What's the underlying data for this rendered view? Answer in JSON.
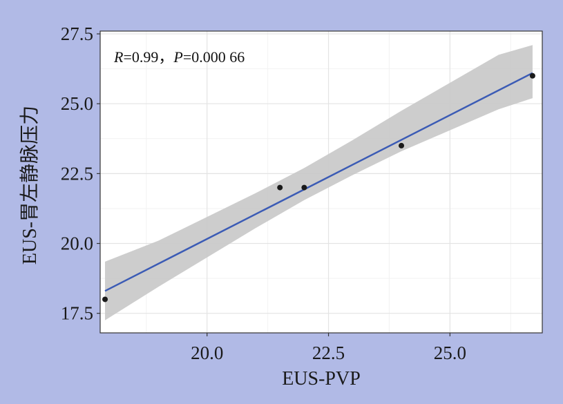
{
  "chart_data": {
    "type": "scatter",
    "xlabel": "EUS-PVP",
    "ylabel": "EUS-胃左静脉压力",
    "xlim": [
      17.8,
      26.9
    ],
    "ylim": [
      16.8,
      27.6
    ],
    "xticks": [
      20.0,
      22.5,
      25.0
    ],
    "yticks": [
      17.5,
      20.0,
      22.5,
      25.0,
      27.5
    ],
    "xtick_labels": [
      "20.0",
      "22.5",
      "25.0"
    ],
    "ytick_labels": [
      "17.5",
      "20.0",
      "22.5",
      "25.0",
      "27.5"
    ],
    "grid": true,
    "annotation": {
      "r_label": "R",
      "r_value": "=0.99",
      "separator": "，",
      "p_label": "P",
      "p_value": "=0.000 66"
    },
    "points": [
      {
        "x": 17.9,
        "y": 18.0
      },
      {
        "x": 21.5,
        "y": 22.0
      },
      {
        "x": 22.0,
        "y": 22.0
      },
      {
        "x": 24.0,
        "y": 23.5
      },
      {
        "x": 26.7,
        "y": 26.0
      }
    ],
    "fit_line": {
      "x": [
        17.9,
        26.7
      ],
      "y": [
        18.3,
        26.1
      ]
    },
    "confidence_band": {
      "x": [
        17.9,
        19.0,
        20.0,
        21.0,
        22.0,
        23.0,
        24.0,
        25.0,
        26.0,
        26.7
      ],
      "lower": [
        17.25,
        18.45,
        19.5,
        20.55,
        21.55,
        22.45,
        23.3,
        24.05,
        24.8,
        25.2
      ],
      "upper": [
        19.35,
        20.1,
        20.95,
        21.8,
        22.7,
        23.7,
        24.75,
        25.75,
        26.75,
        27.1
      ]
    },
    "colors": {
      "background": "#b1bae6",
      "panel": "#ffffff",
      "grid_major": "#e3e3e3",
      "grid_minor": "#f2f2f2",
      "band": "#c8c8c8",
      "fit_line": "#3b5bb5",
      "point": "#1a1a1a"
    }
  }
}
